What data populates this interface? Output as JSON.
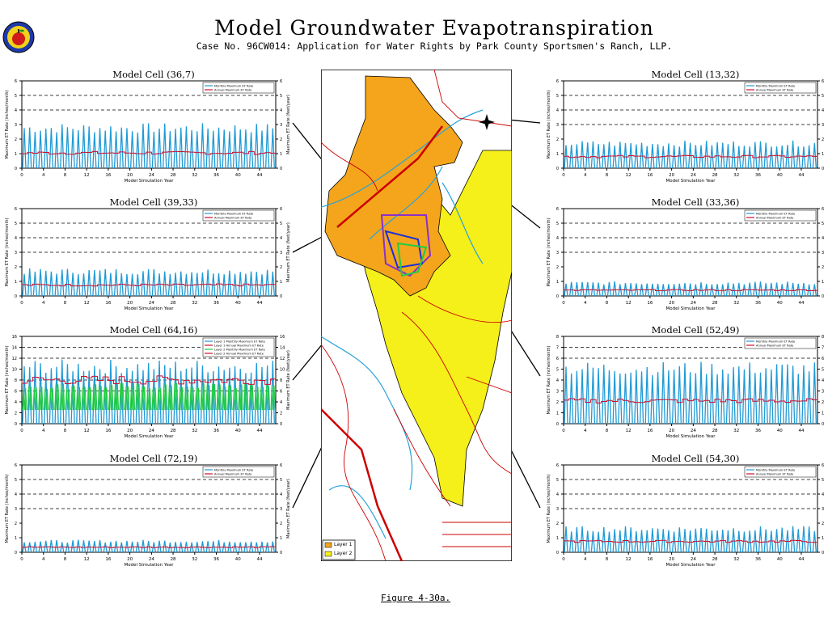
{
  "header": {
    "title": "Model Groundwater Evapotranspiration",
    "subtitle": "Case No. 96CW014: Application for Water Rights by Park County Sportsmen's Ranch, LLP.",
    "figure_label": "Figure 4-30a."
  },
  "colors": {
    "monthly_series": "#1f9ad6",
    "annual_series": "#c8102e",
    "secondary_series": "#22cc44",
    "layer1": "#f4a51c",
    "layer2": "#f5ef1a",
    "rivers": "#29a3d6",
    "roads": "#cc0000",
    "boundary_purple": "#8b2fc9",
    "boundary_blue": "#1a2fd8",
    "boundary_green": "#22cc44"
  },
  "map": {
    "legend": [
      "Layer 1",
      "Layer 2"
    ]
  },
  "chart_data": [
    {
      "type": "line",
      "title": "Model Cell (36,7)",
      "xlabel": "Model Simulation Year",
      "ylabel_left": "Maximum ET Rate (inches/month)",
      "ylabel_right": "Maximum ET Rate (feet/year)",
      "xlim": [
        0,
        47
      ],
      "ylim": [
        0,
        6
      ],
      "xticks": [
        0,
        4,
        8,
        12,
        16,
        20,
        24,
        28,
        32,
        36,
        40,
        44
      ],
      "yticks": [
        0,
        1,
        2,
        3,
        4,
        5,
        6
      ],
      "grid_lines": [
        4,
        5
      ],
      "legend": [
        "Monthly Maximum ET Rate",
        "Annual Maximum ET Rate"
      ],
      "legend_position": "top-right",
      "monthly_peak": 3.1,
      "annual_level": 1.05
    },
    {
      "type": "line",
      "title": "Model Cell (39,33)",
      "xlabel": "Model Simulation Year",
      "ylabel_left": "Maximum ET Rate (inches/month)",
      "ylabel_right": "Maximum ET Rate (feet/year)",
      "xlim": [
        0,
        47
      ],
      "ylim": [
        0,
        6
      ],
      "xticks": [
        0,
        4,
        8,
        12,
        16,
        20,
        24,
        28,
        32,
        36,
        40,
        44
      ],
      "yticks": [
        0,
        1,
        2,
        3,
        4,
        5,
        6
      ],
      "grid_lines": [
        3,
        4,
        5
      ],
      "legend": [
        "Monthly Maximum ET Rate",
        "Annual Maximum ET Rate"
      ],
      "legend_position": "top-right",
      "monthly_peak": 1.9,
      "annual_level": 0.75
    },
    {
      "type": "line",
      "title": "Model Cell (64,16)",
      "xlabel": "Model Simulation Year",
      "ylabel_left": "Maximum ET Rate (inches/month)",
      "ylabel_right": "Maximum ET Rate (feet/year)",
      "xlim": [
        0,
        47
      ],
      "ylim": [
        0,
        16
      ],
      "xticks": [
        0,
        4,
        8,
        12,
        16,
        20,
        24,
        28,
        32,
        36,
        40,
        44
      ],
      "yticks": [
        0,
        2,
        4,
        6,
        8,
        10,
        12,
        14,
        16
      ],
      "grid_lines": [
        6,
        8,
        12,
        14
      ],
      "legend": [
        "Layer 1 Monthly Maximum ET Rate",
        "Layer 1 Annual Maximum ET Rate",
        "Layer 2 Monthly Maximum ET Rate",
        "Layer 2 Annual Maximum ET Rate"
      ],
      "legend_position": "top-right",
      "monthly_peak": 11.8,
      "annual_level": 8.0,
      "secondary_peak": 7.5
    },
    {
      "type": "line",
      "title": "Model Cell (72,19)",
      "xlabel": "Model Simulation Year",
      "ylabel_left": "Maximum ET Rate (inches/month)",
      "ylabel_right": "Maximum ET Rate (feet/year)",
      "xlim": [
        0,
        47
      ],
      "ylim": [
        0,
        6
      ],
      "xticks": [
        0,
        4,
        8,
        12,
        16,
        20,
        24,
        28,
        32,
        36,
        40,
        44
      ],
      "yticks": [
        0,
        1,
        2,
        3,
        4,
        5,
        6
      ],
      "grid_lines": [
        3,
        4,
        5
      ],
      "legend": [
        "Monthly Maximum ET Rate",
        "Annual Maximum ET Rate"
      ],
      "legend_position": "top-right",
      "monthly_peak": 0.85,
      "annual_level": 0.35
    },
    {
      "type": "line",
      "title": "Model Cell (13,32)",
      "xlabel": "Model Simulation Year",
      "ylabel_left": "Maximum ET Rate (inches/month)",
      "ylabel_right": "Maximum ET Rate (feet/year)",
      "xlim": [
        0,
        47
      ],
      "ylim": [
        0,
        6
      ],
      "xticks": [
        0,
        4,
        8,
        12,
        16,
        20,
        24,
        28,
        32,
        36,
        40,
        44
      ],
      "yticks": [
        0,
        1,
        2,
        3,
        4,
        5,
        6
      ],
      "grid_lines": [
        3,
        4,
        5
      ],
      "legend": [
        "Monthly Maximum ET Rate",
        "Annual Maximum ET Rate"
      ],
      "legend_position": "top-right",
      "monthly_peak": 1.9,
      "annual_level": 0.8
    },
    {
      "type": "line",
      "title": "Model Cell (33,36)",
      "xlabel": "Model Simulation Year",
      "ylabel_left": "Maximum ET Rate (inches/month)",
      "ylabel_right": "Maximum ET Rate (feet/year)",
      "xlim": [
        0,
        47
      ],
      "ylim": [
        0,
        6
      ],
      "xticks": [
        0,
        4,
        8,
        12,
        16,
        20,
        24,
        28,
        32,
        36,
        40,
        44
      ],
      "yticks": [
        0,
        1,
        2,
        3,
        4,
        5,
        6
      ],
      "grid_lines": [
        3,
        4,
        5
      ],
      "legend": [
        "Monthly Maximum ET Rate",
        "Annual Maximum ET Rate"
      ],
      "legend_position": "top-right",
      "monthly_peak": 1.0,
      "annual_level": 0.4
    },
    {
      "type": "line",
      "title": "Model Cell (52,49)",
      "xlabel": "Model Simulation Year",
      "ylabel_left": "Maximum ET Rate (inches/month)",
      "ylabel_right": "Maximum ET Rate (feet/year)",
      "xlim": [
        0,
        47
      ],
      "ylim": [
        0,
        8
      ],
      "xticks": [
        0,
        4,
        8,
        12,
        16,
        20,
        24,
        28,
        32,
        36,
        40,
        44
      ],
      "yticks": [
        0,
        1,
        2,
        3,
        4,
        5,
        6,
        7,
        8
      ],
      "grid_lines": [
        6,
        7
      ],
      "legend": [
        "Monthly Maximum ET Rate",
        "Annual Maximum ET Rate"
      ],
      "legend_position": "top-right",
      "monthly_peak": 5.7,
      "annual_level": 2.1
    },
    {
      "type": "line",
      "title": "Model Cell (54,30)",
      "xlabel": "Model Simulation Year",
      "ylabel_left": "Maximum ET Rate (inches/month)",
      "ylabel_right": "Maximum ET Rate (feet/year)",
      "xlim": [
        0,
        47
      ],
      "ylim": [
        0,
        6
      ],
      "xticks": [
        0,
        4,
        8,
        12,
        16,
        20,
        24,
        28,
        32,
        36,
        40,
        44
      ],
      "yticks": [
        0,
        1,
        2,
        3,
        4,
        5,
        6
      ],
      "grid_lines": [
        3,
        4,
        5
      ],
      "legend": [
        "Monthly Maximum ET Rate",
        "Annual Maximum ET Rate"
      ],
      "legend_position": "top-right",
      "monthly_peak": 1.8,
      "annual_level": 0.75
    }
  ]
}
